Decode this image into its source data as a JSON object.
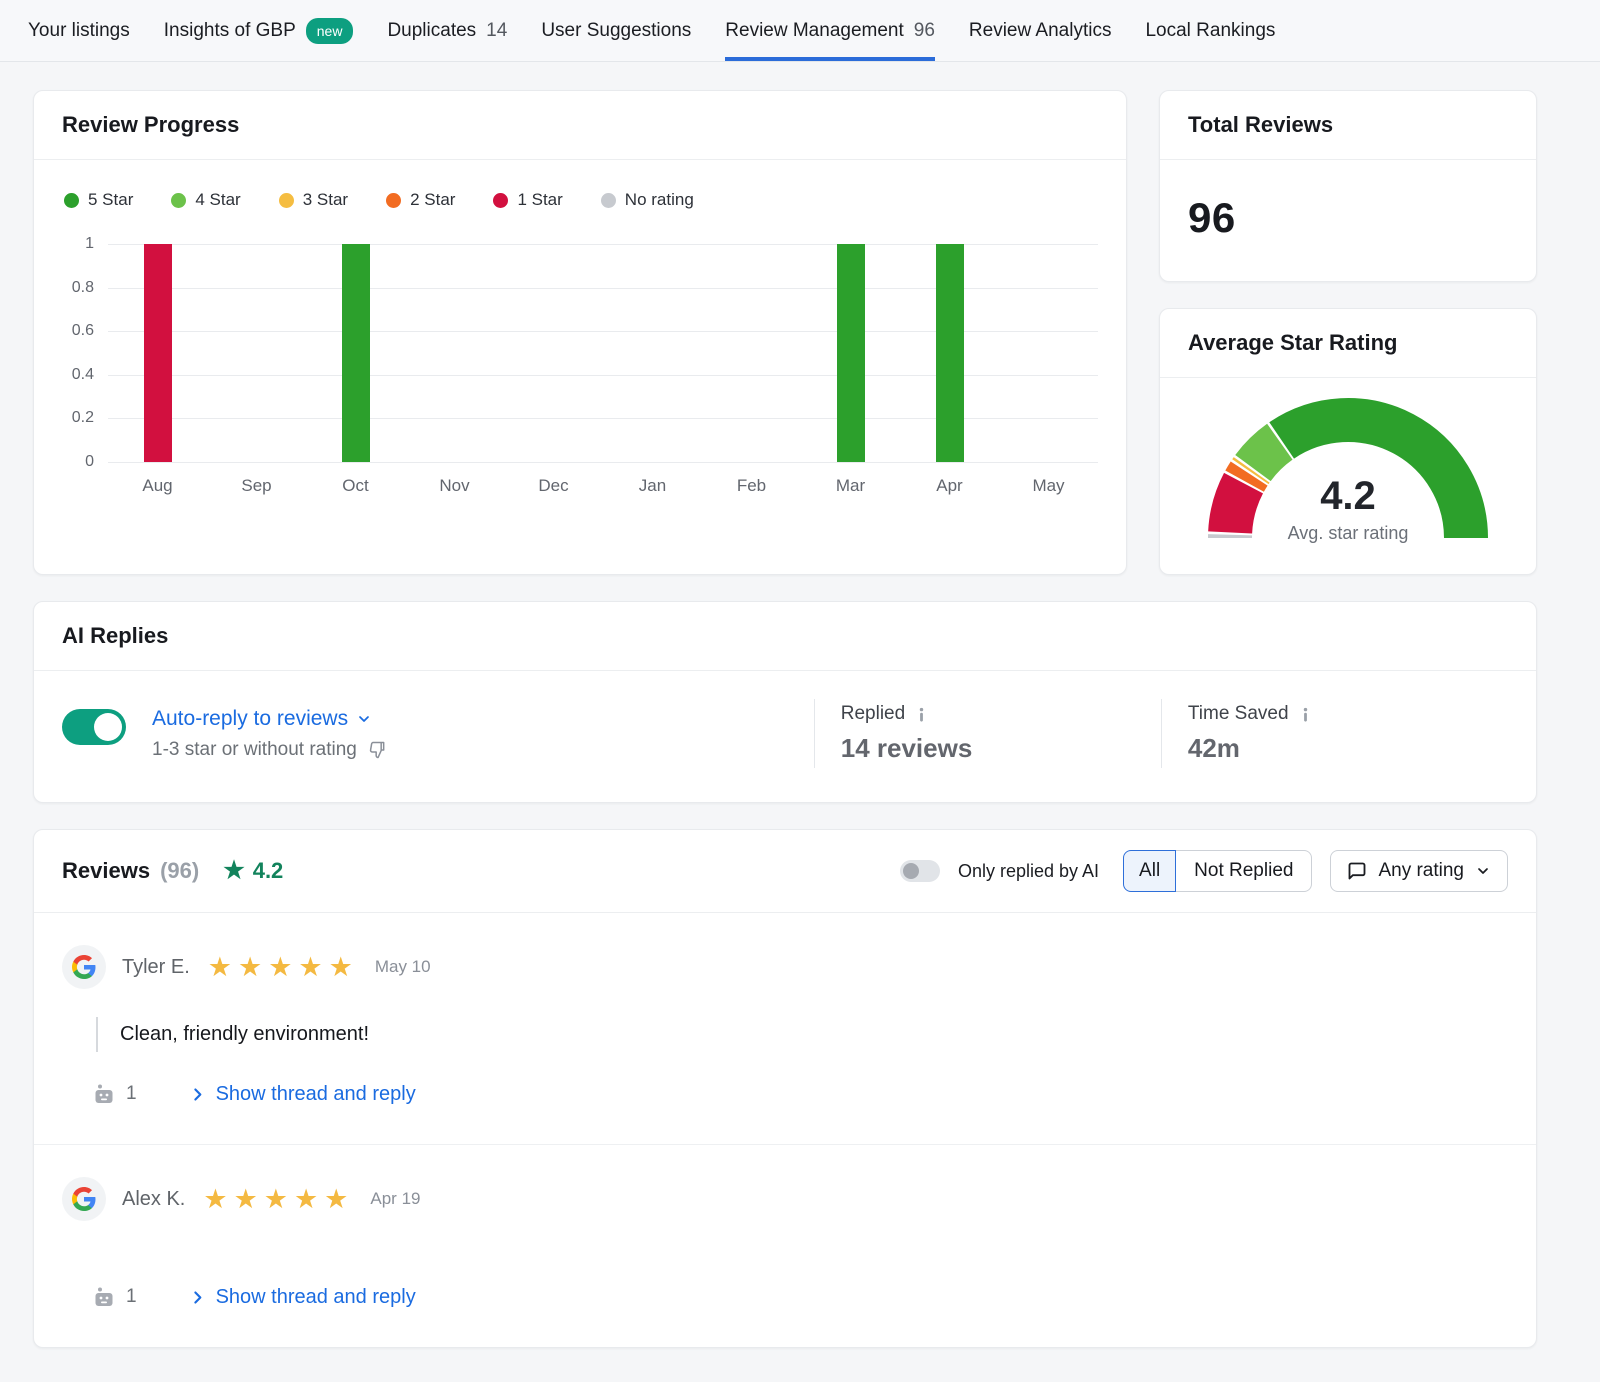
{
  "nav": {
    "items": [
      {
        "label": "Your listings"
      },
      {
        "label": "Insights of GBP",
        "badge": "new"
      },
      {
        "label": "Duplicates",
        "count": "14"
      },
      {
        "label": "User Suggestions"
      },
      {
        "label": "Review Management",
        "count": "96",
        "active": true
      },
      {
        "label": "Review Analytics"
      },
      {
        "label": "Local Rankings"
      }
    ]
  },
  "colors": {
    "accent_blue": "#2b6cd9",
    "teal": "#0d9f80",
    "star_gold": "#f4b941",
    "rating_green": "#12835c"
  },
  "review_progress": {
    "title": "Review Progress"
  },
  "total_reviews": {
    "title": "Total Reviews",
    "value": "96"
  },
  "average_star_rating": {
    "title": "Average Star Rating"
  },
  "chart_data": [
    {
      "type": "bar",
      "title": "Review Progress",
      "categories": [
        "Aug",
        "Sep",
        "Oct",
        "Nov",
        "Dec",
        "Jan",
        "Feb",
        "Mar",
        "Apr",
        "May"
      ],
      "series": [
        {
          "name": "5 Star",
          "color": "#2ca02c",
          "values": [
            0,
            0,
            1,
            0,
            0,
            0,
            0,
            1,
            1,
            0
          ]
        },
        {
          "name": "4 Star",
          "color": "#6cc24a",
          "values": [
            0,
            0,
            0,
            0,
            0,
            0,
            0,
            0,
            0,
            0
          ]
        },
        {
          "name": "3 Star",
          "color": "#f5bd41",
          "values": [
            0,
            0,
            0,
            0,
            0,
            0,
            0,
            0,
            0,
            0
          ]
        },
        {
          "name": "2 Star",
          "color": "#f26c22",
          "values": [
            0,
            0,
            0,
            0,
            0,
            0,
            0,
            0,
            0,
            0
          ]
        },
        {
          "name": "1 Star",
          "color": "#d2103f",
          "values": [
            1,
            0,
            0,
            0,
            0,
            0,
            0,
            0,
            0,
            0
          ]
        },
        {
          "name": "No rating",
          "color": "#c7cacf",
          "values": [
            0,
            0,
            0,
            0,
            0,
            0,
            0,
            0,
            0,
            0
          ]
        }
      ],
      "ylim": [
        0,
        1
      ],
      "yticks": [
        0,
        0.2,
        0.4,
        0.6,
        0.8,
        1
      ],
      "grid": true,
      "legend_position": "top"
    },
    {
      "type": "gauge",
      "title": "Average Star Rating",
      "value": "4.2",
      "label": "Avg. star rating",
      "range": [
        0,
        5
      ],
      "segments": [
        {
          "name": "no-rating",
          "color": "#c7cacf",
          "fraction": 0.015
        },
        {
          "name": "1-star",
          "color": "#d2103f",
          "fraction": 0.145
        },
        {
          "name": "2-star",
          "color": "#f26c22",
          "fraction": 0.03
        },
        {
          "name": "3-star",
          "color": "#f5bd41",
          "fraction": 0.012
        },
        {
          "name": "4-star",
          "color": "#6cc24a",
          "fraction": 0.108
        },
        {
          "name": "5-star",
          "color": "#2ca02c",
          "fraction": 0.69
        }
      ]
    }
  ],
  "ai_replies": {
    "title": "AI Replies",
    "toggle_state": "on",
    "toggle_label": "Auto-reply to reviews",
    "toggle_sublabel": "1-3 star or without rating",
    "replied_label": "Replied",
    "replied_value": "14 reviews",
    "time_saved_label": "Time Saved",
    "time_saved_value": "42m"
  },
  "reviews": {
    "title": "Reviews",
    "count": "(96)",
    "rating": "4.2",
    "only_ai_toggle_label": "Only replied by AI",
    "only_ai_toggle_state": "off",
    "filter_all": "All",
    "filter_not_replied": "Not Replied",
    "rating_filter": "Any rating",
    "items": [
      {
        "name": "Tyler E.",
        "source": "Google",
        "stars": 5,
        "date": "May 10",
        "text": "Clean, friendly environment!",
        "ai_reply_count": "1",
        "action": "Show thread and reply"
      },
      {
        "name": "Alex K.",
        "source": "Google",
        "stars": 5,
        "date": "Apr 19",
        "text": "",
        "ai_reply_count": "1",
        "action": "Show thread and reply"
      }
    ]
  }
}
